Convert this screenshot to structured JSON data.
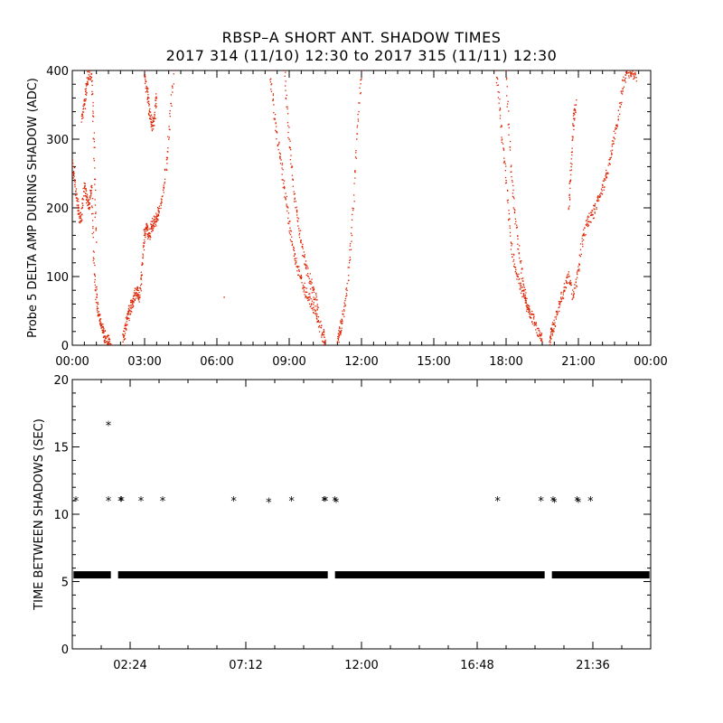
{
  "title_line1": "RBSP–A SHORT ANT. SHADOW TIMES",
  "title_line2": "2017 314 (11/10) 12:30 to 2017 315 (11/11) 12:30",
  "chart_data": [
    {
      "type": "scatter",
      "ylabel": "Probe 5 DELTA AMP DURING SHADOW (ADC)",
      "xlabel": "",
      "x_unit": "hours",
      "xlim": [
        0,
        24
      ],
      "ylim": [
        0,
        400
      ],
      "x_tick_values": [
        0,
        3,
        6,
        9,
        12,
        15,
        18,
        21,
        24
      ],
      "x_tick_labels": [
        "00:00",
        "03:00",
        "06:00",
        "09:00",
        "12:00",
        "15:00",
        "18:00",
        "21:00",
        "00:00"
      ],
      "y_tick_values": [
        0,
        100,
        200,
        300,
        400
      ],
      "y_tick_labels": [
        "0",
        "100",
        "200",
        "300",
        "400"
      ],
      "marker": "dot",
      "color": "#dd2200",
      "series": [
        {
          "x": [
            0.0,
            0.1,
            0.2,
            0.3,
            0.4,
            0.5,
            0.6,
            0.7,
            0.8,
            0.9,
            1.0,
            1.1,
            1.2,
            1.3,
            1.4,
            1.5,
            1.6
          ],
          "y": [
            270,
            240,
            210,
            185,
            190,
            230,
            215,
            205,
            230,
            120,
            70,
            45,
            30,
            18,
            10,
            5,
            2
          ]
        },
        {
          "x": [
            0.4,
            0.5,
            0.6,
            0.7,
            0.8,
            0.9,
            1.0
          ],
          "y": [
            330,
            350,
            380,
            400,
            390,
            300,
            150
          ]
        },
        {
          "x": [
            2.1,
            2.2,
            2.3,
            2.4,
            2.5,
            2.6,
            2.7,
            2.8,
            2.9,
            3.0,
            3.1,
            3.2,
            3.3,
            3.4,
            3.5,
            3.6,
            3.8,
            4.0,
            4.2
          ],
          "y": [
            5,
            25,
            40,
            55,
            60,
            75,
            80,
            70,
            120,
            165,
            170,
            160,
            175,
            180,
            185,
            195,
            230,
            300,
            400
          ]
        },
        {
          "x": [
            3.0,
            3.1,
            3.2,
            3.3,
            3.4,
            3.5
          ],
          "y": [
            400,
            370,
            340,
            320,
            330,
            360
          ]
        },
        {
          "x": [
            8.2,
            8.4,
            8.6,
            8.8,
            9.0,
            9.2,
            9.4,
            9.6,
            9.8,
            10.0,
            10.2,
            10.4,
            10.5
          ],
          "y": [
            400,
            330,
            280,
            230,
            180,
            130,
            110,
            85,
            70,
            55,
            35,
            15,
            5
          ]
        },
        {
          "x": [
            8.8,
            9.0,
            9.2,
            9.4,
            9.6,
            9.8,
            10.0,
            10.2
          ],
          "y": [
            400,
            300,
            220,
            170,
            130,
            100,
            80,
            55
          ]
        },
        {
          "x": [
            11.0,
            11.1,
            11.2,
            11.4,
            11.6,
            11.8,
            12.0
          ],
          "y": [
            5,
            20,
            35,
            80,
            160,
            300,
            400
          ]
        },
        {
          "x": [
            6.3
          ],
          "y": [
            70
          ]
        },
        {
          "x": [
            17.6,
            17.8,
            18.0,
            18.2,
            18.4,
            18.6,
            18.8,
            19.0,
            19.2,
            19.4,
            19.5
          ],
          "y": [
            400,
            320,
            240,
            150,
            110,
            85,
            65,
            45,
            30,
            15,
            5
          ]
        },
        {
          "x": [
            18.0,
            18.2,
            18.4,
            18.6,
            18.8,
            19.0
          ],
          "y": [
            400,
            260,
            180,
            120,
            70,
            40
          ]
        },
        {
          "x": [
            19.8,
            19.9,
            20.0,
            20.2,
            20.4,
            20.6,
            20.8,
            21.0,
            21.2,
            21.4,
            21.6,
            21.8,
            22.0,
            22.2,
            22.4,
            22.6,
            22.8,
            23.0,
            23.2,
            23.4
          ],
          "y": [
            5,
            20,
            30,
            60,
            80,
            100,
            70,
            110,
            160,
            180,
            190,
            210,
            230,
            250,
            290,
            320,
            370,
            400,
            395,
            390
          ]
        },
        {
          "x": [
            20.6,
            20.7,
            20.8,
            20.9
          ],
          "y": [
            200,
            260,
            330,
            350
          ]
        }
      ]
    },
    {
      "type": "scatter",
      "ylabel": "TIME BETWEEN SHADOWS (SEC)",
      "xlabel": "",
      "x_unit": "hours",
      "xlim": [
        0,
        24
      ],
      "ylim": [
        0,
        20
      ],
      "x_tick_values": [
        2.4,
        7.2,
        12.0,
        16.8,
        21.6
      ],
      "x_tick_labels": [
        "02:24",
        "07:12",
        "12:00",
        "16:48",
        "21:36"
      ],
      "y_tick_values": [
        0,
        5,
        10,
        15,
        20
      ],
      "y_tick_labels": [
        "0",
        "5",
        "10",
        "15",
        "20"
      ],
      "marker": "asterisk",
      "color": "#000000",
      "baseline_segments": [
        {
          "x_start": 0.05,
          "x_end": 1.6,
          "y": 5.5
        },
        {
          "x_start": 1.9,
          "x_end": 10.6,
          "y": 5.5
        },
        {
          "x_start": 10.9,
          "x_end": 19.6,
          "y": 5.5
        },
        {
          "x_start": 19.9,
          "x_end": 23.95,
          "y": 5.5
        }
      ],
      "points": {
        "x": [
          0.15,
          1.5,
          1.5,
          2.0,
          2.05,
          2.85,
          3.75,
          6.7,
          8.15,
          9.1,
          10.45,
          10.5,
          10.9,
          10.95,
          17.65,
          19.45,
          19.95,
          20.0,
          20.95,
          21.0,
          21.5
        ],
        "y": [
          11.0,
          11.0,
          16.6,
          11.0,
          11.0,
          11.0,
          11.0,
          11.0,
          10.9,
          11.0,
          11.0,
          11.0,
          11.0,
          10.9,
          11.0,
          11.0,
          11.0,
          10.9,
          11.0,
          10.9,
          11.0
        ]
      }
    }
  ]
}
